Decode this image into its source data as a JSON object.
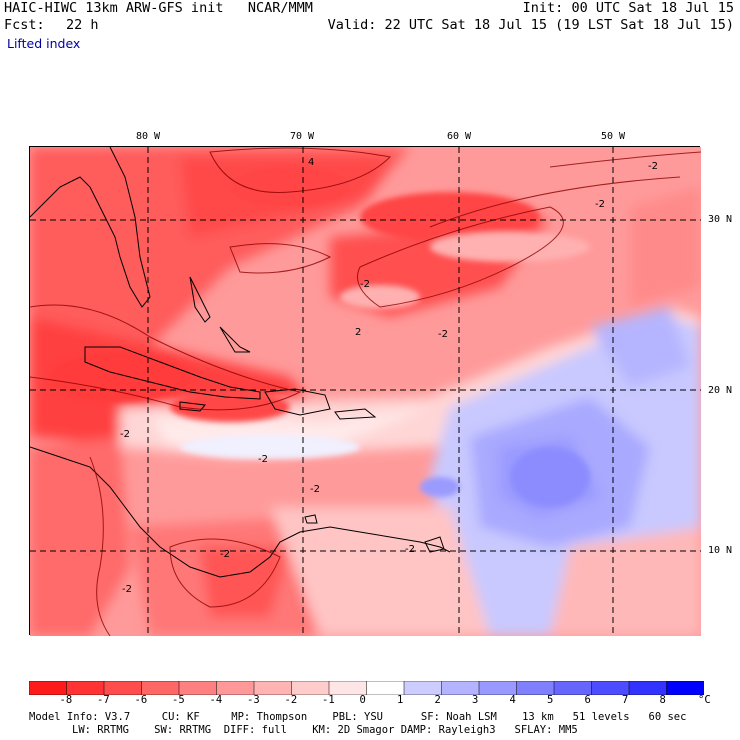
{
  "header": {
    "title": "HAIC-HIWC 13km ARW-GFS init   NCAR/MMM",
    "init": "Init: 00 UTC Sat 18 Jul 15",
    "fcst_label": "Fcst:",
    "fcst_value": "22 h",
    "valid": "Valid: 22 UTC Sat 18 Jul 15 (19 LST Sat 18 Jul 15)",
    "field": "Lifted index"
  },
  "map": {
    "lon_labels": [
      "80 W",
      "70 W",
      "60 W",
      "50 W"
    ],
    "lat_labels": [
      "30 N",
      "20 N",
      "10 N"
    ],
    "contour_labels": [
      "4",
      "-2",
      "-2",
      "2",
      "-2",
      "-2",
      "-2",
      "-2",
      "-2",
      "-2",
      "-2",
      "-2"
    ]
  },
  "colorbar": {
    "labels": [
      "-8",
      "-7",
      "-6",
      "-5",
      "-4",
      "-3",
      "-2",
      "-1",
      "0",
      "1",
      "2",
      "3",
      "4",
      "5",
      "6",
      "7",
      "8",
      "°C"
    ],
    "colors": [
      "#ff1a1a",
      "#ff3333",
      "#ff4d4d",
      "#ff6666",
      "#ff8080",
      "#ff9999",
      "#ffb3b3",
      "#ffcccc",
      "#ffe6e6",
      "#ffffff",
      "#ccccff",
      "#b3b3ff",
      "#9999ff",
      "#8080ff",
      "#6666ff",
      "#4d4dff",
      "#3333ff",
      "#0000ff"
    ]
  },
  "footer": {
    "line1": "Model Info: V3.7     CU: KF     MP: Thompson    PBL: YSU      SF: Noah LSM    13 km   51 levels   60 sec",
    "line2": "LW: RRTMG    SW: RRTMG  DIFF: full    KM: 2D Smagor DAMP: Rayleigh3   SFLAY: MM5"
  }
}
